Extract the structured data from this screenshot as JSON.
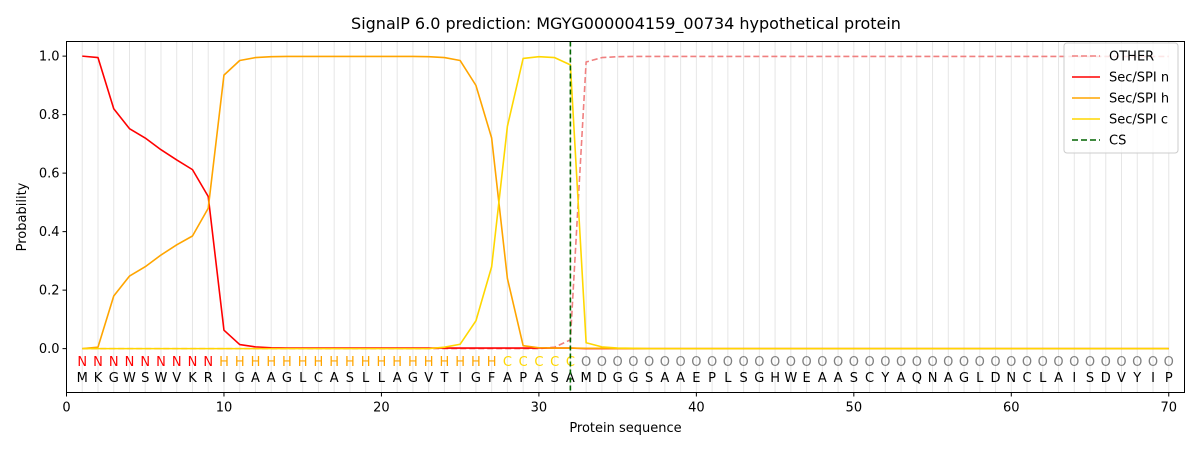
{
  "chart_data": {
    "type": "line",
    "title": "SignalP 6.0 prediction: MGYG000004159_00734 hypothetical protein",
    "xlabel": "Protein sequence",
    "ylabel": "Probability",
    "xlim": [
      0,
      71
    ],
    "ylim": [
      -0.15,
      1.05
    ],
    "x_ticks": [
      0,
      10,
      20,
      30,
      40,
      50,
      60,
      70
    ],
    "y_ticks": [
      0.0,
      0.2,
      0.4,
      0.6,
      0.8,
      1.0
    ],
    "x_tick_labels": [
      "0",
      "10",
      "20",
      "30",
      "40",
      "50",
      "60",
      "70"
    ],
    "y_tick_labels": [
      "0.0",
      "0.2",
      "0.4",
      "0.6",
      "0.8",
      "1.0"
    ],
    "grid": "vertical lines at every residue",
    "legend_position": "top-right",
    "sequence": "MKGWSWVKRIGAAGLCASLLAGVTIGFAPASAMDGGSAAEPLSGHWEAASCYAQNAGLDNCLAISDVYIP",
    "labels": "NNNNNNNNNHHHHHHHHHHHHHHHHHHCCCCCOOOOOOOOOOOOOOOOOOOOOOOOOOOOOOOOOOOOOO",
    "label_colors": {
      "N": "#ff0000",
      "H": "#ffa500",
      "C": "#ffd700",
      "O": "#808080"
    },
    "cleavage_site": 32,
    "series": [
      {
        "name": "OTHER",
        "color": "#f08080",
        "dash": true,
        "values": [
          0,
          0,
          0,
          0,
          0,
          0,
          0,
          0,
          0,
          0,
          0,
          0,
          0,
          0,
          0,
          0,
          0,
          0,
          0,
          0,
          0,
          0,
          0,
          0,
          0,
          0,
          0,
          0,
          0,
          0,
          0.005,
          0.03,
          0.98,
          0.995,
          0.998,
          0.999,
          0.999,
          0.999,
          0.999,
          0.999,
          0.999,
          0.999,
          0.999,
          0.999,
          0.999,
          0.999,
          0.999,
          0.999,
          0.999,
          0.999,
          0.999,
          0.999,
          0.999,
          0.999,
          0.999,
          0.999,
          0.999,
          0.999,
          0.999,
          0.999,
          0.999,
          0.999,
          0.999,
          0.999,
          0.999,
          0.999,
          0.999,
          0.999,
          0.999,
          0.999
        ]
      },
      {
        "name": "Sec/SPI n",
        "color": "#ff0000",
        "dash": false,
        "values": [
          1.0,
          0.995,
          0.82,
          0.752,
          0.72,
          0.68,
          0.645,
          0.612,
          0.52,
          0.063,
          0.014,
          0.006,
          0.003,
          0.002,
          0.002,
          0.002,
          0.002,
          0.002,
          0.002,
          0.002,
          0.002,
          0.002,
          0.002,
          0.002,
          0.002,
          0.002,
          0.002,
          0.002,
          0.002,
          0.002,
          0.002,
          0.002,
          0,
          0,
          0,
          0,
          0,
          0,
          0,
          0,
          0,
          0,
          0,
          0,
          0,
          0,
          0,
          0,
          0,
          0,
          0,
          0,
          0,
          0,
          0,
          0,
          0,
          0,
          0,
          0,
          0,
          0,
          0,
          0,
          0,
          0,
          0,
          0,
          0,
          0
        ]
      },
      {
        "name": "Sec/SPI h",
        "color": "#ffa500",
        "dash": false,
        "values": [
          0,
          0.005,
          0.18,
          0.248,
          0.28,
          0.32,
          0.355,
          0.385,
          0.48,
          0.935,
          0.985,
          0.995,
          0.998,
          0.999,
          0.999,
          0.999,
          0.999,
          0.999,
          0.999,
          0.999,
          0.999,
          0.999,
          0.998,
          0.995,
          0.985,
          0.9,
          0.72,
          0.24,
          0.01,
          0.003,
          0.002,
          0.002,
          0.001,
          0.001,
          0,
          0,
          0,
          0,
          0,
          0,
          0,
          0,
          0,
          0,
          0,
          0,
          0,
          0,
          0,
          0,
          0,
          0,
          0,
          0,
          0,
          0,
          0,
          0,
          0,
          0,
          0,
          0,
          0,
          0,
          0,
          0,
          0,
          0,
          0,
          0
        ]
      },
      {
        "name": "Sec/SPI c",
        "color": "#ffd700",
        "dash": false,
        "values": [
          0,
          0,
          0,
          0,
          0,
          0,
          0,
          0,
          0,
          0,
          0,
          0,
          0,
          0,
          0,
          0,
          0,
          0,
          0,
          0,
          0,
          0,
          0,
          0.005,
          0.015,
          0.095,
          0.28,
          0.76,
          0.992,
          0.998,
          0.995,
          0.97,
          0.02,
          0.006,
          0.002,
          0.001,
          0,
          0,
          0,
          0,
          0,
          0,
          0,
          0,
          0,
          0,
          0,
          0,
          0,
          0,
          0,
          0,
          0,
          0,
          0,
          0,
          0,
          0,
          0,
          0,
          0,
          0,
          0,
          0,
          0,
          0,
          0,
          0,
          0,
          0
        ]
      }
    ],
    "cs_legend": {
      "name": "CS",
      "color": "#006400",
      "dash": true
    }
  }
}
